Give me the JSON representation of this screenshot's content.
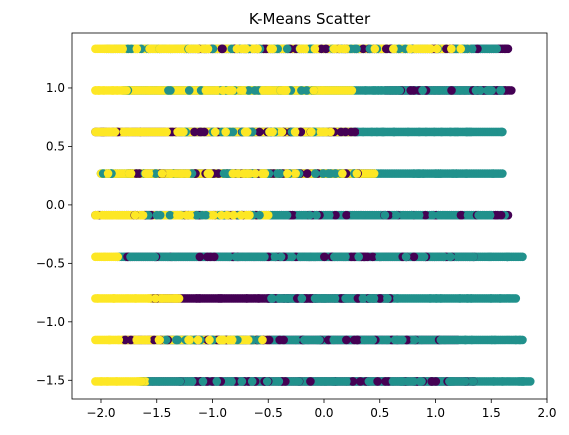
{
  "chart_data": {
    "type": "scatter",
    "title": "K-Means Scatter",
    "xlabel": "",
    "ylabel": "",
    "xlim": [
      -2.26,
      2.0
    ],
    "ylim": [
      -1.66,
      1.47
    ],
    "x_ticks": [
      -2.0,
      -1.5,
      -1.0,
      -0.5,
      0.0,
      0.5,
      1.0,
      1.5,
      2.0
    ],
    "x_tick_labels": [
      "−2.0",
      "−1.5",
      "−1.0",
      "−0.5",
      "0.0",
      "0.5",
      "1.0",
      "1.5",
      "2.0"
    ],
    "y_ticks": [
      -1.5,
      -1.0,
      -0.5,
      0.0,
      0.5,
      1.0
    ],
    "y_tick_labels": [
      "−1.5",
      "−1.0",
      "−0.5",
      "0.0",
      "0.5",
      "1.0"
    ],
    "grid": false,
    "legend": "none",
    "row_y_values": [
      -1.51,
      -1.155,
      -0.8,
      -0.444,
      -0.088,
      0.268,
      0.624,
      0.979,
      1.335
    ],
    "cluster_colors": [
      "#440154",
      "#21918c",
      "#fde725"
    ],
    "series": [
      {
        "cluster": 0,
        "color": "#440154",
        "segments": [
          {
            "y": -1.51,
            "x_start": -1.62,
            "x_end": 1.35
          },
          {
            "y": -1.155,
            "x_start": -1.8,
            "x_end": 1.2
          },
          {
            "y": -0.8,
            "x_start": -1.55,
            "x_end": 0.6
          },
          {
            "y": -0.444,
            "x_start": -1.78,
            "x_end": 1.35
          },
          {
            "y": -0.088,
            "x_start": -2.05,
            "x_end": 1.65
          },
          {
            "y": 0.268,
            "x_start": -1.75,
            "x_end": 0.45
          },
          {
            "y": 0.624,
            "x_start": -2.05,
            "x_end": 0.3
          },
          {
            "y": 0.979,
            "x_start": 0.55,
            "x_end": 1.68
          },
          {
            "y": 1.335,
            "x_start": -1.25,
            "x_end": 1.65
          }
        ]
      },
      {
        "cluster": 1,
        "color": "#21918c",
        "segments": [
          {
            "y": -1.51,
            "x_start": -1.65,
            "x_end": 1.85
          },
          {
            "y": -1.155,
            "x_start": -1.5,
            "x_end": 1.78
          },
          {
            "y": -0.8,
            "x_start": -0.5,
            "x_end": 1.72
          },
          {
            "y": -0.444,
            "x_start": -1.85,
            "x_end": 1.78
          },
          {
            "y": -0.088,
            "x_start": -1.6,
            "x_end": 1.62
          },
          {
            "y": 0.268,
            "x_start": -2.0,
            "x_end": 1.6
          },
          {
            "y": 0.624,
            "x_start": -1.3,
            "x_end": 1.6
          },
          {
            "y": 0.979,
            "x_start": -1.8,
            "x_end": 1.62
          },
          {
            "y": 1.335,
            "x_start": -1.95,
            "x_end": 1.55
          }
        ]
      },
      {
        "cluster": 2,
        "color": "#fde725",
        "segments": [
          {
            "y": -1.51,
            "x_start": -2.05,
            "x_end": -1.6
          },
          {
            "y": -1.155,
            "x_start": -2.05,
            "x_end": -0.5
          },
          {
            "y": -0.8,
            "x_start": -2.05,
            "x_end": -1.3
          },
          {
            "y": -0.444,
            "x_start": -2.05,
            "x_end": -1.85
          },
          {
            "y": -0.088,
            "x_start": -2.05,
            "x_end": -0.5
          },
          {
            "y": 0.268,
            "x_start": -2.0,
            "x_end": 0.45
          },
          {
            "y": 0.624,
            "x_start": -2.05,
            "x_end": 0.25
          },
          {
            "y": 0.979,
            "x_start": -2.05,
            "x_end": 0.25
          },
          {
            "y": 1.335,
            "x_start": -2.05,
            "x_end": 1.3
          }
        ]
      }
    ]
  }
}
